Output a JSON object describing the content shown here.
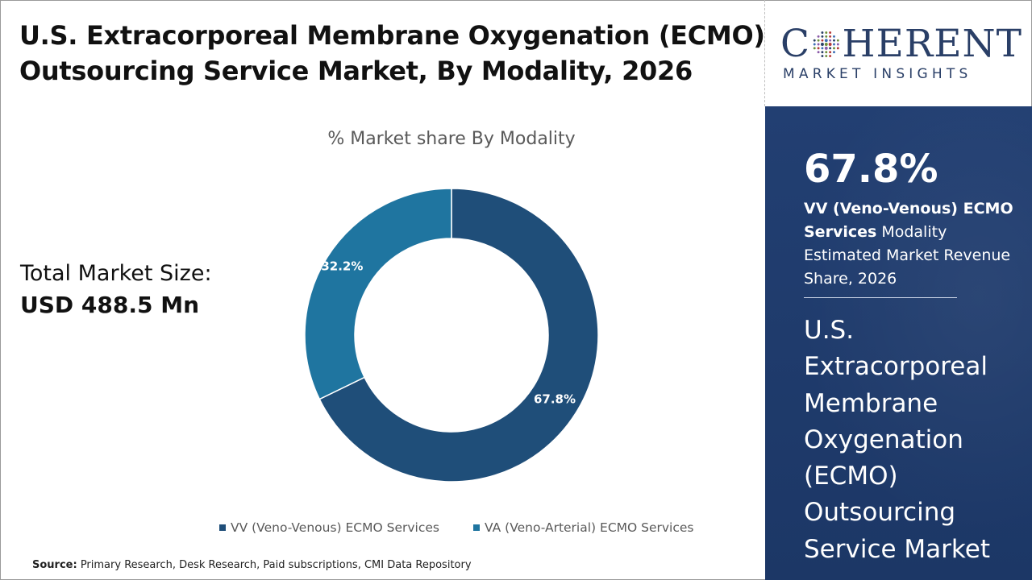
{
  "header": {
    "title_line1": "U.S. Extracorporeal Membrane Oxygenation (ECMO)",
    "title_line2": "Outsourcing Service Market, By Modality, 2026"
  },
  "logo": {
    "word_prefix": "C",
    "word_suffix": "HERENT",
    "subtitle": "MARKET INSIGHTS",
    "colors": [
      "#2a3f67",
      "#6c8f3a",
      "#b33a3a",
      "#3d6fb6",
      "#8a5aa8"
    ]
  },
  "market_size": {
    "label": "Total Market Size:",
    "value": "USD 488.5 Mn"
  },
  "side_panel": {
    "percent": "67.8%",
    "segment_bold": "VV (Veno-Venous) ECMO Services",
    "segment_rest": " Modality Estimated Market Revenue Share, 2026",
    "market_name": "U.S. Extracorporeal Membrane Oxygenation (ECMO) Outsourcing Service Market"
  },
  "chart_data": {
    "type": "pie",
    "donut": true,
    "title": "% Market share By Modality",
    "categories": [
      "VV (Veno-Venous) ECMO Services",
      "VA (Veno-Arterial) ECMO Services"
    ],
    "values": [
      67.8,
      32.2
    ],
    "labels": [
      "67.8%",
      "32.2%"
    ],
    "colors": [
      "#1f4e79",
      "#1f75a0"
    ],
    "legend_position": "bottom"
  },
  "source": {
    "label": "Source:",
    "text": " Primary Research, Desk Research, Paid subscriptions, CMI Data Repository"
  }
}
